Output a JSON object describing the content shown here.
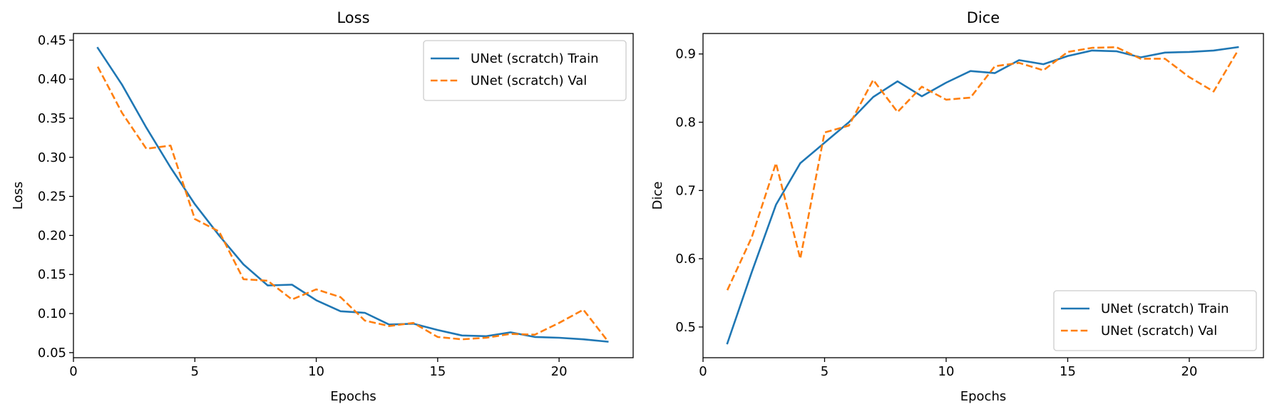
{
  "chart_data": [
    {
      "type": "line",
      "title": "Loss",
      "xlabel": "Epochs",
      "ylabel": "Loss",
      "xlim": [
        0,
        23.05
      ],
      "ylim": [
        0.0435,
        0.4585
      ],
      "xticks": [
        0,
        5,
        10,
        15,
        20
      ],
      "yticks": [
        0.05,
        0.1,
        0.15,
        0.2,
        0.25,
        0.3,
        0.35,
        0.4,
        0.45
      ],
      "ytick_decimals": 2,
      "legend_position": "top-right",
      "x": [
        1,
        2,
        3,
        4,
        5,
        6,
        7,
        8,
        9,
        10,
        11,
        12,
        13,
        14,
        15,
        16,
        17,
        18,
        19,
        20,
        21,
        22
      ],
      "series": [
        {
          "name": "UNet (scratch) Train",
          "color": "#1f77b4",
          "dash": "solid",
          "values": [
            0.44,
            0.393,
            0.338,
            0.287,
            0.24,
            0.2,
            0.163,
            0.136,
            0.137,
            0.117,
            0.103,
            0.101,
            0.086,
            0.087,
            0.079,
            0.072,
            0.071,
            0.076,
            0.07,
            0.069,
            0.067,
            0.064
          ]
        },
        {
          "name": "UNet (scratch) Val",
          "color": "#ff7f0e",
          "dash": "dashed",
          "values": [
            0.416,
            0.357,
            0.311,
            0.315,
            0.221,
            0.205,
            0.144,
            0.142,
            0.118,
            0.131,
            0.121,
            0.091,
            0.084,
            0.088,
            0.07,
            0.067,
            0.069,
            0.074,
            0.073,
            0.088,
            0.105,
            0.065
          ]
        }
      ]
    },
    {
      "type": "line",
      "title": "Dice",
      "xlabel": "Epochs",
      "ylabel": "Dice",
      "xlim": [
        0,
        23.05
      ],
      "ylim": [
        0.455,
        0.93
      ],
      "xticks": [
        0,
        5,
        10,
        15,
        20
      ],
      "yticks": [
        0.5,
        0.6,
        0.7,
        0.8,
        0.9
      ],
      "ytick_decimals": 1,
      "legend_position": "bottom-right",
      "x": [
        1,
        2,
        3,
        4,
        5,
        6,
        7,
        8,
        9,
        10,
        11,
        12,
        13,
        14,
        15,
        16,
        17,
        18,
        19,
        20,
        21,
        22
      ],
      "series": [
        {
          "name": "UNet (scratch) Train",
          "color": "#1f77b4",
          "dash": "solid",
          "values": [
            0.476,
            0.58,
            0.679,
            0.74,
            0.77,
            0.8,
            0.837,
            0.86,
            0.838,
            0.858,
            0.875,
            0.872,
            0.891,
            0.885,
            0.897,
            0.905,
            0.904,
            0.895,
            0.902,
            0.903,
            0.905,
            0.91
          ]
        },
        {
          "name": "UNet (scratch) Val",
          "color": "#ff7f0e",
          "dash": "dashed",
          "values": [
            0.554,
            0.631,
            0.74,
            0.6,
            0.785,
            0.795,
            0.862,
            0.815,
            0.852,
            0.833,
            0.836,
            0.882,
            0.887,
            0.876,
            0.903,
            0.909,
            0.91,
            0.893,
            0.893,
            0.866,
            0.845,
            0.905
          ]
        }
      ]
    }
  ]
}
